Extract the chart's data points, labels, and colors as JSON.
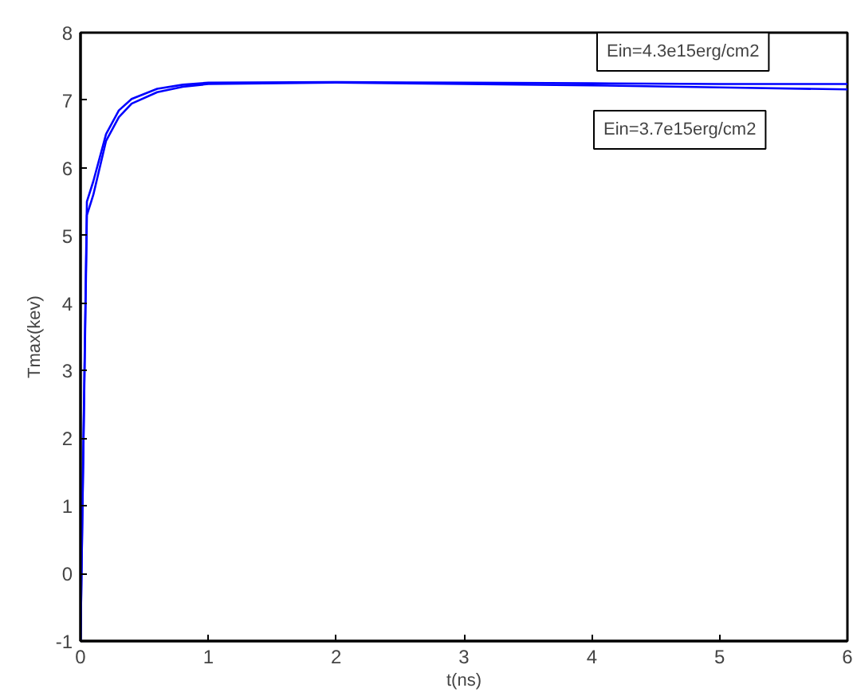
{
  "chart_data": {
    "type": "line",
    "xlabel": "t(ns)",
    "ylabel": "Tmax(kev)",
    "x": [
      0,
      0.05,
      0.1,
      0.2,
      0.3,
      0.4,
      0.6,
      0.8,
      1,
      2,
      3,
      4,
      5,
      6
    ],
    "series": [
      {
        "color": "#0000ff",
        "values": [
          -1,
          5.5,
          5.8,
          6.5,
          6.85,
          7.02,
          7.17,
          7.23,
          7.26,
          7.27,
          7.26,
          7.25,
          7.24,
          7.24
        ]
      },
      {
        "color": "#0000ff",
        "values": [
          -1,
          5.3,
          5.6,
          6.4,
          6.75,
          6.95,
          7.12,
          7.2,
          7.24,
          7.26,
          7.24,
          7.22,
          7.19,
          7.16
        ]
      }
    ],
    "annotations": [
      "Ein=4.3e15erg/cm2",
      "Ein=3.7e15erg/cm2"
    ],
    "xlim": [
      0,
      6
    ],
    "ylim": [
      -1,
      8
    ],
    "xticks": [
      0,
      1,
      2,
      3,
      4,
      5,
      6
    ],
    "yticks": [
      -1,
      0,
      1,
      2,
      3,
      4,
      5,
      6,
      7,
      8
    ],
    "grid": false,
    "line_style": "solid"
  }
}
